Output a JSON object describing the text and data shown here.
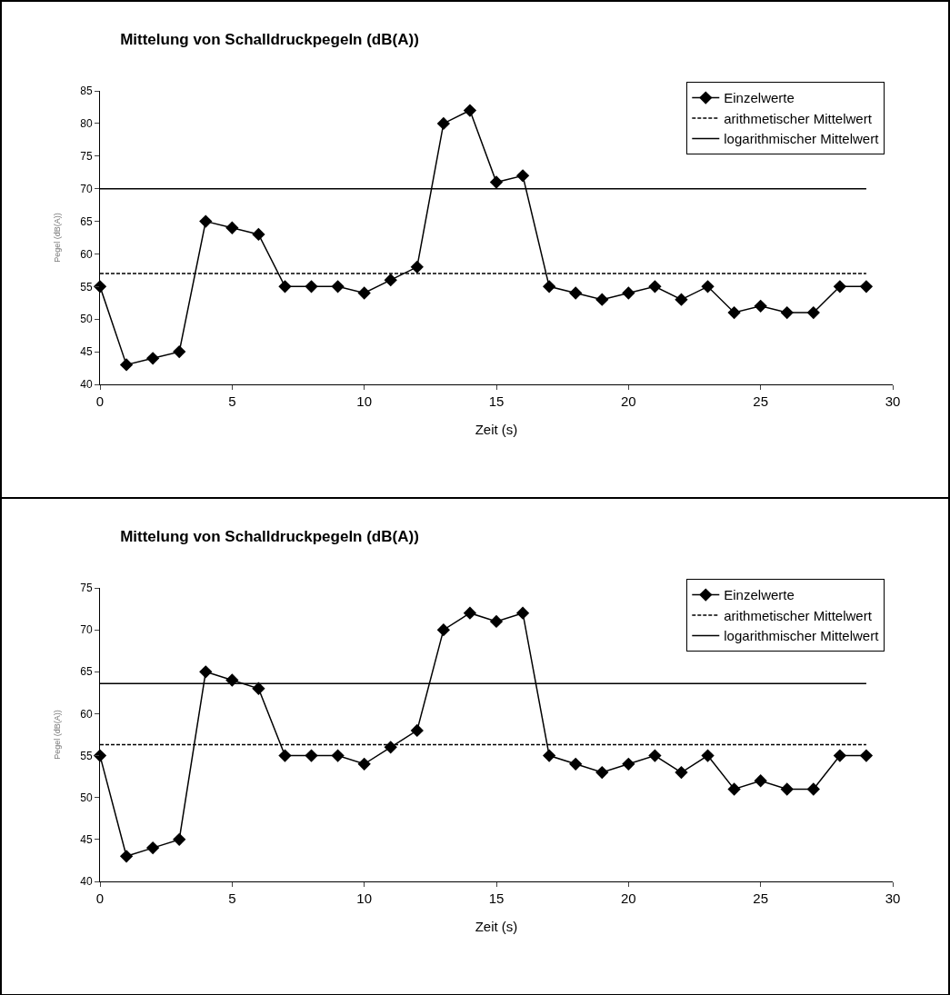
{
  "chart_data": [
    {
      "type": "line",
      "title": "Mittelung von Schalldruckpegeln (dB(A))",
      "xlabel": "Zeit (s)",
      "ylabel": "Pegel (dB(A))",
      "x": [
        0,
        1,
        2,
        3,
        4,
        5,
        6,
        7,
        8,
        9,
        10,
        11,
        12,
        13,
        14,
        15,
        16,
        17,
        18,
        19,
        20,
        21,
        22,
        23,
        24,
        25,
        26,
        27,
        28,
        29
      ],
      "marker": "diamond",
      "series": [
        {
          "name": "Einzelwerte",
          "color": "#000000",
          "values": [
            55,
            43,
            44,
            45,
            65,
            64,
            63,
            55,
            55,
            55,
            54,
            56,
            58,
            80,
            82,
            71,
            72,
            55,
            54,
            53,
            54,
            55,
            53,
            55,
            51,
            52,
            51,
            51,
            55,
            55
          ]
        }
      ],
      "ref_lines": [
        {
          "axis": "y",
          "value": 57,
          "label": "arithmetischer Mittelwert",
          "color": "#000000",
          "line_style": "dashed"
        },
        {
          "axis": "y",
          "value": 70,
          "label": "logarithmischer Mittelwert",
          "color": "#000000",
          "line_style": "solid"
        }
      ],
      "xlim": [
        0,
        30
      ],
      "xticks": [
        0,
        5,
        10,
        15,
        20,
        25,
        30
      ],
      "ylim": [
        40,
        85
      ],
      "yticks": [
        40,
        45,
        50,
        55,
        60,
        65,
        70,
        75,
        80,
        85
      ],
      "legend": "top right"
    },
    {
      "type": "line",
      "title": "Mittelung von Schalldruckpegeln (dB(A))",
      "xlabel": "Zeit (s)",
      "ylabel": "Pegel (dB(A))",
      "x": [
        0,
        1,
        2,
        3,
        4,
        5,
        6,
        7,
        8,
        9,
        10,
        11,
        12,
        13,
        14,
        15,
        16,
        17,
        18,
        19,
        20,
        21,
        22,
        23,
        24,
        25,
        26,
        27,
        28,
        29
      ],
      "marker": "diamond",
      "series": [
        {
          "name": "Einzelwerte",
          "color": "#000000",
          "values": [
            55,
            43,
            44,
            45,
            65,
            64,
            63,
            55,
            55,
            55,
            54,
            56,
            58,
            70,
            72,
            71,
            72,
            55,
            54,
            53,
            54,
            55,
            53,
            55,
            51,
            52,
            51,
            51,
            55,
            55
          ]
        }
      ],
      "ref_lines": [
        {
          "axis": "y",
          "value": 56.3,
          "label": "arithmetischer Mittelwert",
          "color": "#000000",
          "line_style": "dashed"
        },
        {
          "axis": "y",
          "value": 63.6,
          "label": "logarithmischer Mittelwert",
          "color": "#000000",
          "line_style": "solid"
        }
      ],
      "xlim": [
        0,
        30
      ],
      "xticks": [
        0,
        5,
        10,
        15,
        20,
        25,
        30
      ],
      "ylim": [
        40,
        75
      ],
      "yticks": [
        40,
        45,
        50,
        55,
        60,
        65,
        70,
        75
      ],
      "legend": "top right"
    }
  ]
}
